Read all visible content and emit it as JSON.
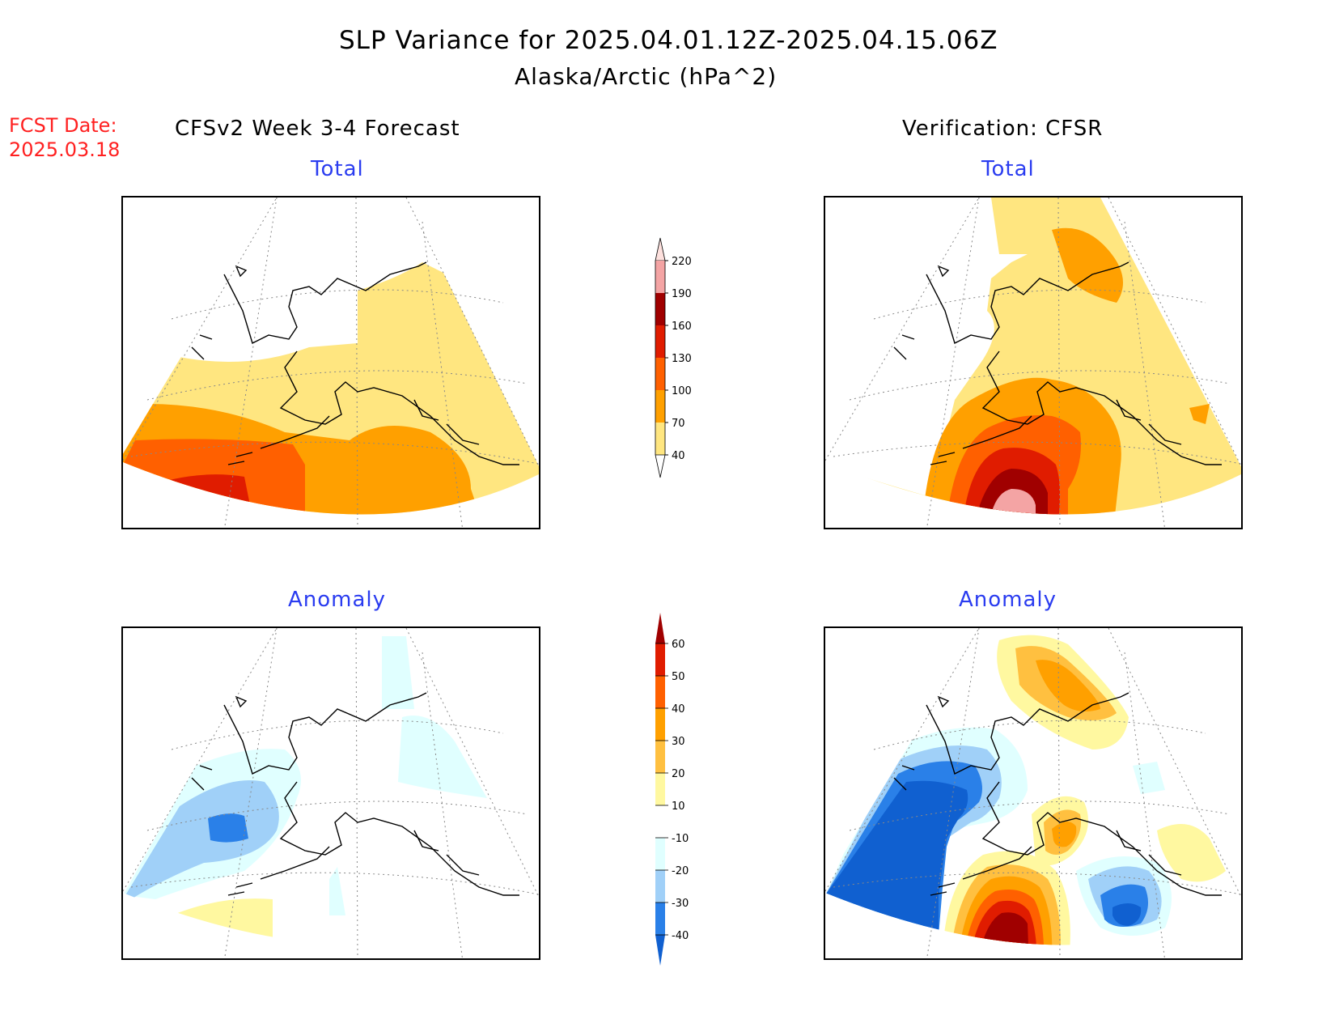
{
  "title": {
    "line1": "SLP Variance for 2025.04.01.12Z-2025.04.15.06Z",
    "line2": "Alaska/Arctic (hPa^2)"
  },
  "fcst_date": {
    "label": "FCST Date:",
    "value": "2025.03.18"
  },
  "headers": {
    "forecast": "CFSv2 Week 3-4 Forecast",
    "verification": "Verification: CFSR"
  },
  "panels": {
    "fcst_total": {
      "title": "Total"
    },
    "obs_total": {
      "title": "Total"
    },
    "fcst_anom": {
      "title": "Anomaly"
    },
    "obs_anom": {
      "title": "Anomaly"
    }
  },
  "colorbars": {
    "total": {
      "labels": [
        "220",
        "190",
        "160",
        "130",
        "100",
        "70",
        "40"
      ],
      "colors": [
        "#fde0dd",
        "#f4a4a4",
        "#a00000",
        "#e01c00",
        "#ff6000",
        "#ffa000",
        "#ffe680"
      ]
    },
    "anomaly": {
      "labels": [
        "60",
        "50",
        "40",
        "30",
        "20",
        "10",
        "-10",
        "-20",
        "-30",
        "-40"
      ],
      "colors": [
        "#a00000",
        "#e01c00",
        "#ff6000",
        "#ffa000",
        "#ffc040",
        "#fff8a0",
        "#ffffff",
        "#e0ffff",
        "#a0d0f8",
        "#2a80e8",
        "#1060d0"
      ]
    }
  }
}
